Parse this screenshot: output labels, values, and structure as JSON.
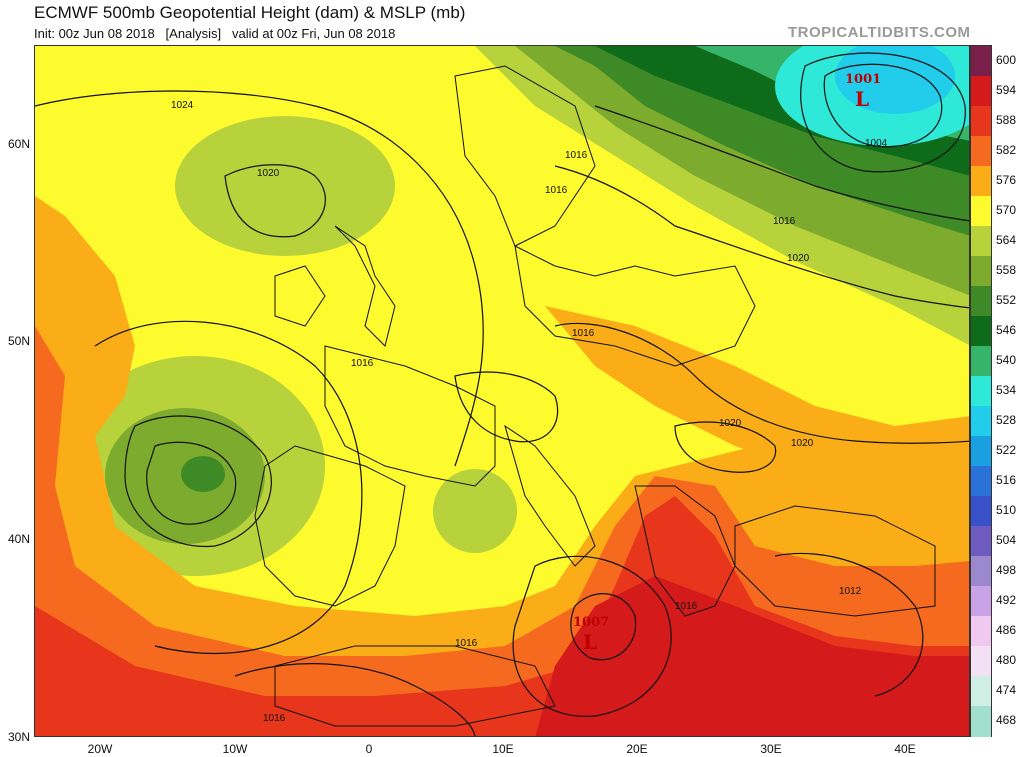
{
  "header": {
    "title": "ECMWF 500mb Geopotential Height (dam) & MSLP (mb)",
    "subtitle": "Init: 00z Jun 08 2018   [Analysis]   valid at 00z Fri, Jun 08 2018",
    "brand": "TROPICALTIDBITS.COM"
  },
  "axes": {
    "lat_labels": [
      "60N",
      "50N",
      "40N",
      "30N"
    ],
    "lon_labels": [
      "20W",
      "10W",
      "0",
      "10E",
      "20E",
      "30E",
      "40E"
    ]
  },
  "colorbar": {
    "labels": [
      "600",
      "594",
      "588",
      "582",
      "576",
      "570",
      "564",
      "558",
      "552",
      "546",
      "540",
      "534",
      "528",
      "522",
      "516",
      "510",
      "504",
      "498",
      "492",
      "486",
      "480",
      "474",
      "468"
    ],
    "colors": [
      "#7a1f4a",
      "#d41a1a",
      "#e8361c",
      "#f56a1e",
      "#fbad18",
      "#fdfa2e",
      "#b8d23c",
      "#7dab2e",
      "#3d8a26",
      "#0e6b1a",
      "#35b46a",
      "#2ee8d8",
      "#21cdea",
      "#1aa0e0",
      "#2a72d8",
      "#3850c8",
      "#6d5bbf",
      "#9b88cf",
      "#c9a3e6",
      "#f0c8f0",
      "#f2e0f4",
      "#cfeee4",
      "#a0e0cc"
    ]
  },
  "map_labels": {
    "isobars": [
      "1024",
      "1020",
      "1016",
      "1016",
      "1016",
      "1016",
      "1016",
      "1020",
      "1020",
      "1020",
      "1016",
      "1016",
      "1004",
      "1012",
      "1016"
    ],
    "lows": [
      {
        "value": "1001",
        "symbol": "L"
      },
      {
        "value": "1007",
        "symbol": "L"
      }
    ]
  },
  "icons": {
    "low_center": "low-pressure-L-icon",
    "colorbar": "color-scale-icon"
  }
}
